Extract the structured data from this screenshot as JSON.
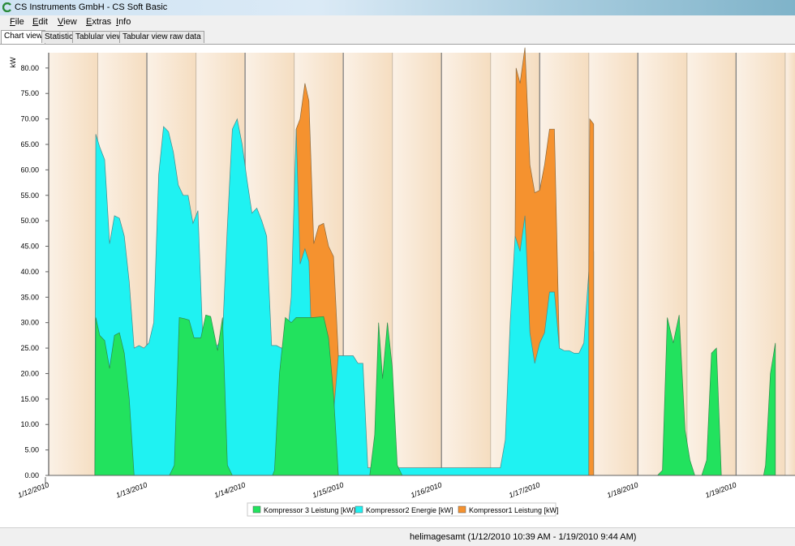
{
  "window": {
    "title": "CS Instruments GmbH - CS Soft Basic"
  },
  "menu": [
    {
      "label": "File",
      "access": "F",
      "rest": "ile"
    },
    {
      "label": "Edit",
      "access": "E",
      "rest": "dit"
    },
    {
      "label": "View",
      "access": "V",
      "rest": "iew"
    },
    {
      "label": "Extras",
      "access": "E",
      "rest": "xtras"
    },
    {
      "label": "Info",
      "access": "I",
      "rest": "nfo"
    }
  ],
  "tabs": [
    "Chart view",
    "Statistic",
    "Tablular view",
    "Tabular view raw data"
  ],
  "active_tab": 0,
  "colors": {
    "green": "#22e25e",
    "cyan": "#1ff2f2",
    "orange": "#f5922f",
    "plot_bg_light": "#fbf1e6",
    "plot_bg_dark": "#f5ddc0"
  },
  "status": {
    "text": "helimagesamt (1/12/2010 10:39 AM - 1/19/2010 9:44 AM)"
  },
  "chart_data": {
    "type": "area",
    "stacked": true,
    "ylabel": "kW",
    "ylim": [
      0,
      83
    ],
    "yticks": [
      "0.00",
      "5.00",
      "10.00",
      "15.00",
      "20.00",
      "25.00",
      "30.00",
      "35.00",
      "40.00",
      "45.00",
      "50.00",
      "55.00",
      "60.00",
      "65.00",
      "70.00",
      "75.00",
      "80.00"
    ],
    "xlim": [
      0,
      7.6
    ],
    "xticks": [
      {
        "x": 0,
        "label": "1/12/2010"
      },
      {
        "x": 1,
        "label": "1/13/2010"
      },
      {
        "x": 2,
        "label": "1/14/2010"
      },
      {
        "x": 3,
        "label": "1/15/2010"
      },
      {
        "x": 4,
        "label": "1/16/2010"
      },
      {
        "x": 5,
        "label": "1/17/2010"
      },
      {
        "x": 6,
        "label": "1/18/2010"
      },
      {
        "x": 7,
        "label": "1/19/2010"
      }
    ],
    "legend_position": "bottom",
    "series": [
      {
        "name": "Kompressor 3  Leistung  [kW]",
        "color": "green",
        "points": [
          [
            0.47,
            0
          ],
          [
            0.48,
            31
          ],
          [
            0.52,
            27.5
          ],
          [
            0.57,
            26.5
          ],
          [
            0.62,
            21
          ],
          [
            0.67,
            27.5
          ],
          [
            0.72,
            28
          ],
          [
            0.77,
            24
          ],
          [
            0.82,
            15
          ],
          [
            0.87,
            0
          ],
          [
            1.23,
            0
          ],
          [
            1.28,
            2
          ],
          [
            1.33,
            31
          ],
          [
            1.38,
            30.8
          ],
          [
            1.43,
            30.5
          ],
          [
            1.48,
            27
          ],
          [
            1.55,
            27
          ],
          [
            1.6,
            31.5
          ],
          [
            1.65,
            31.2
          ],
          [
            1.72,
            24.5
          ],
          [
            1.77,
            31
          ],
          [
            1.82,
            2
          ],
          [
            1.87,
            0
          ],
          [
            2.28,
            0
          ],
          [
            2.3,
            1
          ],
          [
            2.35,
            20
          ],
          [
            2.41,
            31
          ],
          [
            2.47,
            30
          ],
          [
            2.52,
            31
          ],
          [
            2.6,
            31
          ],
          [
            2.7,
            31
          ],
          [
            2.8,
            31.2
          ],
          [
            2.85,
            27
          ],
          [
            2.9,
            16
          ],
          [
            2.95,
            0
          ],
          [
            3.27,
            0
          ],
          [
            3.32,
            8
          ],
          [
            3.36,
            30
          ],
          [
            3.4,
            19
          ],
          [
            3.45,
            30
          ],
          [
            3.5,
            21
          ],
          [
            3.55,
            2
          ],
          [
            3.6,
            0
          ],
          [
            6.2,
            0
          ],
          [
            6.25,
            1
          ],
          [
            6.3,
            31
          ],
          [
            6.36,
            26
          ],
          [
            6.42,
            31.5
          ],
          [
            6.48,
            9
          ],
          [
            6.53,
            3
          ],
          [
            6.58,
            0
          ],
          [
            6.65,
            0
          ],
          [
            6.7,
            3
          ],
          [
            6.75,
            24
          ],
          [
            6.8,
            25
          ],
          [
            6.85,
            0
          ],
          [
            7.28,
            0
          ],
          [
            7.3,
            2
          ],
          [
            7.35,
            20
          ],
          [
            7.4,
            26
          ],
          [
            7.4,
            0
          ]
        ]
      },
      {
        "name": "Kompressor2  Energie  [kW]",
        "color": "cyan",
        "points": [
          [
            0.47,
            0
          ],
          [
            0.48,
            67
          ],
          [
            0.52,
            64.5
          ],
          [
            0.57,
            62
          ],
          [
            0.62,
            45.5
          ],
          [
            0.67,
            51
          ],
          [
            0.72,
            50.5
          ],
          [
            0.77,
            47
          ],
          [
            0.82,
            38
          ],
          [
            0.87,
            25
          ],
          [
            0.92,
            25.5
          ],
          [
            0.97,
            25
          ],
          [
            1.02,
            26
          ],
          [
            1.07,
            30
          ],
          [
            1.12,
            59
          ],
          [
            1.17,
            68.5
          ],
          [
            1.22,
            67.5
          ],
          [
            1.27,
            63.5
          ],
          [
            1.32,
            57
          ],
          [
            1.37,
            55
          ],
          [
            1.42,
            55
          ],
          [
            1.47,
            49.5
          ],
          [
            1.52,
            52
          ],
          [
            1.57,
            26.2
          ],
          [
            1.62,
            26
          ],
          [
            1.67,
            25.5
          ],
          [
            1.72,
            25.5
          ],
          [
            1.77,
            27.5
          ],
          [
            1.82,
            49
          ],
          [
            1.87,
            68
          ],
          [
            1.92,
            70
          ],
          [
            1.97,
            65
          ],
          [
            2.02,
            58
          ],
          [
            2.07,
            51.5
          ],
          [
            2.12,
            52.5
          ],
          [
            2.17,
            50
          ],
          [
            2.22,
            47
          ],
          [
            2.27,
            25.5
          ],
          [
            2.32,
            25.5
          ],
          [
            2.37,
            25
          ],
          [
            2.42,
            25.5
          ],
          [
            2.47,
            35
          ],
          [
            2.52,
            68
          ],
          [
            2.56,
            41.5
          ],
          [
            2.61,
            44.5
          ],
          [
            2.65,
            42
          ],
          [
            2.7,
            13
          ],
          [
            2.75,
            16.5
          ],
          [
            2.8,
            17.5
          ],
          [
            2.85,
            13
          ],
          [
            2.9,
            12
          ],
          [
            2.95,
            23.5
          ],
          [
            3.0,
            23.5
          ],
          [
            3.05,
            23.5
          ],
          [
            3.1,
            23.5
          ],
          [
            3.15,
            22
          ],
          [
            3.2,
            22
          ],
          [
            3.25,
            1.5
          ],
          [
            3.3,
            1.5
          ],
          [
            3.35,
            1.5
          ],
          [
            3.4,
            1.5
          ],
          [
            3.45,
            1.5
          ],
          [
            3.5,
            1.5
          ],
          [
            3.6,
            1.5
          ],
          [
            3.7,
            1.5
          ],
          [
            3.8,
            1.5
          ],
          [
            3.9,
            1.5
          ],
          [
            4.0,
            1.5
          ],
          [
            4.2,
            1.5
          ],
          [
            4.4,
            1.5
          ],
          [
            4.55,
            1.5
          ],
          [
            4.6,
            1.5
          ],
          [
            4.65,
            7
          ],
          [
            4.7,
            30
          ],
          [
            4.75,
            47
          ],
          [
            4.8,
            44
          ],
          [
            4.85,
            51
          ],
          [
            4.9,
            28
          ],
          [
            4.95,
            22
          ],
          [
            5.0,
            26
          ],
          [
            5.05,
            28
          ],
          [
            5.1,
            36
          ],
          [
            5.15,
            36
          ],
          [
            5.2,
            25
          ],
          [
            5.25,
            24.5
          ],
          [
            5.3,
            24.5
          ],
          [
            5.35,
            24
          ],
          [
            5.4,
            24
          ],
          [
            5.45,
            26
          ],
          [
            5.5,
            40
          ],
          [
            5.55,
            44
          ]
        ]
      },
      {
        "name": "Kompressor1  Leistung  [kW]",
        "color": "orange",
        "points": []
      }
    ]
  }
}
